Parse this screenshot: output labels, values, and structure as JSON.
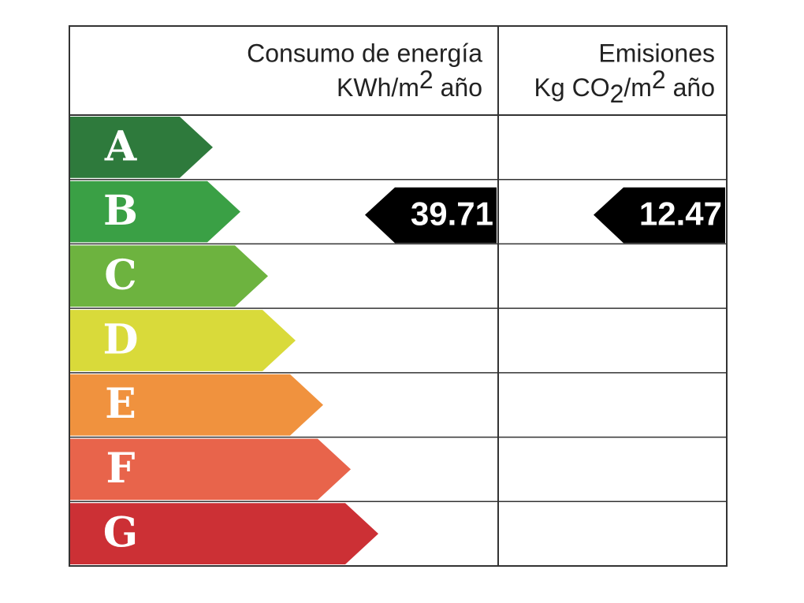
{
  "header": {
    "consumption": {
      "title": "Consumo de energía",
      "unit": [
        "KWh/m",
        "2",
        " año"
      ]
    },
    "emissions": {
      "title": "Emisiones",
      "unit": [
        "Kg CO",
        "2",
        "/m",
        "2",
        " año"
      ]
    }
  },
  "rows": [
    {
      "letter": "A",
      "color": "#2e7a3c"
    },
    {
      "letter": "B",
      "color": "#3aa045",
      "consumption": "39.71",
      "emissions": "12.47"
    },
    {
      "letter": "C",
      "color": "#6db33f"
    },
    {
      "letter": "D",
      "color": "#d9da3a"
    },
    {
      "letter": "E",
      "color": "#f0923e"
    },
    {
      "letter": "F",
      "color": "#e8644b"
    },
    {
      "letter": "G",
      "color": "#cc3035"
    }
  ]
}
